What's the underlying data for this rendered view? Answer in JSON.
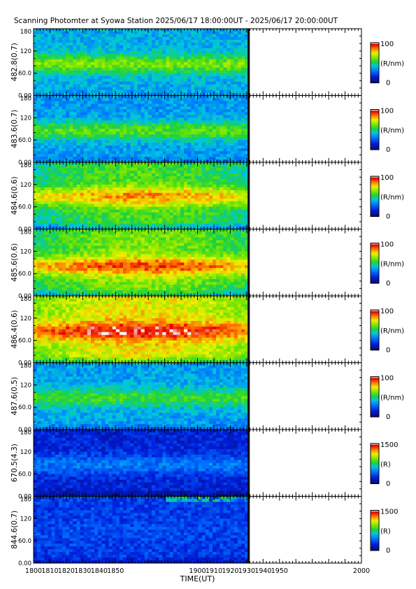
{
  "title": "Scanning Photomter at Syowa Station 2025/06/17 18:00:00UT - 2025/06/17 20:00:00UT",
  "chart_data": {
    "type": "heatmap",
    "title": "Scanning Photomter at Syowa Station 2025/06/17 18:00:00UT - 2025/06/17 20:00:00UT",
    "xlabel": "TIME(UT)",
    "x_tick_labels": [
      "1800",
      "1810",
      "1820",
      "1830",
      "1840",
      "1850",
      "1900",
      "1910",
      "1920",
      "1930",
      "1940",
      "1950",
      "2000"
    ],
    "y_tick_labels": [
      "0.00",
      "60.0",
      "120",
      "180"
    ],
    "ylim": [
      0,
      180
    ],
    "data_end_time": "1931",
    "panels": [
      {
        "ylabel": "482.8(0.7)",
        "unit": "(R/nm)",
        "cbar_min": "0",
        "cbar_max": "100",
        "vmax": 100,
        "band_level": 0.62,
        "band_center": 85,
        "edge_level": 0.35,
        "base_level": 0.38,
        "trend": "slight decrease after 1850"
      },
      {
        "ylabel": "483.6(0.7)",
        "unit": "(R/nm)",
        "cbar_min": "0",
        "cbar_max": "100",
        "vmax": 100,
        "band_level": 0.58,
        "band_center": 85,
        "edge_level": 0.3,
        "base_level": 0.35,
        "trend": "bright line near 85"
      },
      {
        "ylabel": "484.6(0.6)",
        "unit": "(R/nm)",
        "cbar_min": "0",
        "cbar_max": "100",
        "vmax": 100,
        "band_level": 0.72,
        "band_center": 88,
        "edge_level": 0.3,
        "base_level": 0.45,
        "trend": "peak near 1850-1930"
      },
      {
        "ylabel": "485.6(0.6)",
        "unit": "(R/nm)",
        "cbar_min": "0",
        "cbar_max": "100",
        "vmax": 100,
        "band_level": 0.78,
        "band_center": 80,
        "edge_level": 0.35,
        "base_level": 0.5,
        "trend": "strongest 1850-1930"
      },
      {
        "ylabel": "486.4(0.6)",
        "unit": "(R/nm)",
        "cbar_min": "0",
        "cbar_max": "100",
        "vmax": 100,
        "band_level": 0.85,
        "band_center": 85,
        "edge_level": 0.45,
        "base_level": 0.62,
        "trend": "bright line at 85"
      },
      {
        "ylabel": "487.6(0.5)",
        "unit": "(R/nm)",
        "cbar_min": "0",
        "cbar_max": "100",
        "vmax": 100,
        "band_level": 0.55,
        "band_center": 85,
        "edge_level": 0.28,
        "base_level": 0.36,
        "trend": "weak"
      },
      {
        "ylabel": "670.5(4.3)",
        "unit": "(R)",
        "cbar_min": "0",
        "cbar_max": "1500",
        "vmax": 1500,
        "band_level": 0.3,
        "band_center": 85,
        "edge_level": 0.05,
        "base_level": 0.15,
        "trend": "faint line at 85"
      },
      {
        "ylabel": "844.6(0.7)",
        "unit": "(R)",
        "cbar_min": "0",
        "cbar_max": "1500",
        "vmax": 1500,
        "band_level": 0.22,
        "band_center": 85,
        "edge_level": 0.1,
        "base_level": 0.2,
        "trend": "bright near 180 after 1900"
      }
    ]
  }
}
